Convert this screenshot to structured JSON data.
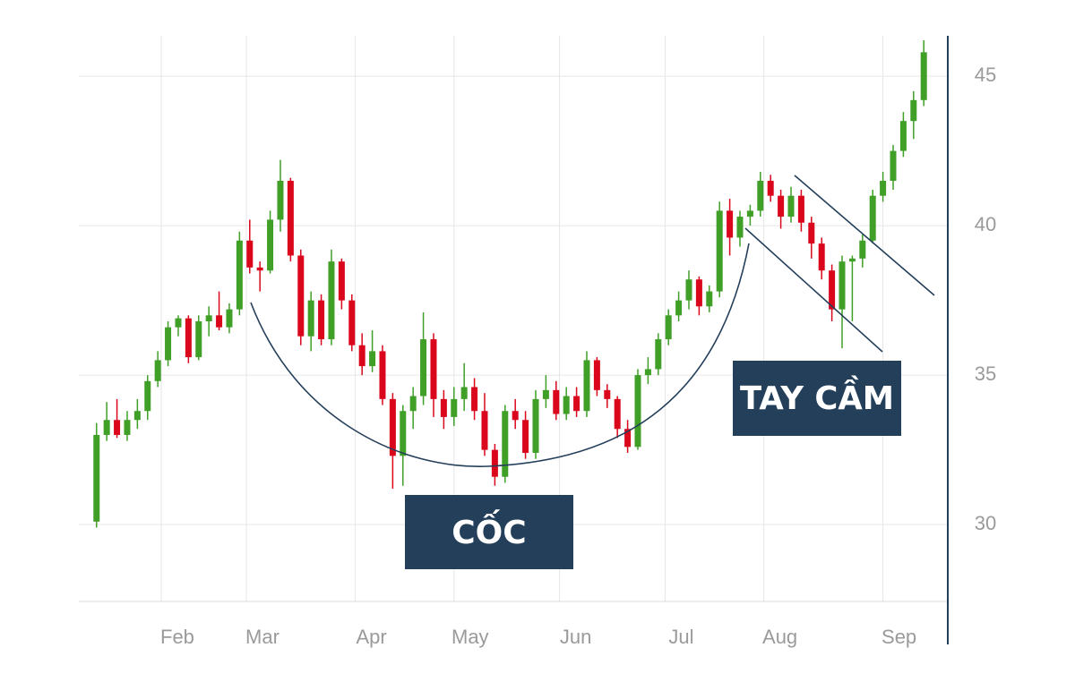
{
  "chart_data": {
    "type": "candlestick",
    "x": [
      12,
      15,
      18,
      21,
      24,
      27,
      30,
      33,
      36,
      39,
      42,
      45,
      48,
      51,
      54,
      57,
      60,
      63,
      66,
      69,
      72,
      75,
      78,
      81,
      84,
      87,
      90,
      93,
      96,
      99,
      102,
      105,
      108,
      111,
      114,
      117,
      120,
      123,
      126,
      129,
      132,
      135,
      138,
      141,
      144,
      147,
      150,
      153,
      156,
      159,
      162,
      165,
      168,
      171,
      174,
      177,
      180,
      183,
      186,
      189,
      192,
      195,
      198,
      201,
      204,
      207,
      210,
      213,
      216,
      219,
      222,
      225,
      228,
      231,
      234,
      237,
      240,
      243,
      246,
      249,
      252,
      255
    ],
    "open": [
      30.1,
      33.0,
      33.5,
      33.0,
      33.5,
      33.8,
      34.8,
      35.5,
      36.6,
      36.9,
      35.6,
      36.8,
      37.0,
      36.6,
      37.2,
      39.5,
      38.6,
      38.5,
      40.2,
      41.5,
      39.0,
      36.3,
      37.5,
      36.2,
      38.8,
      37.5,
      36.0,
      35.3,
      35.8,
      34.2,
      32.3,
      33.8,
      34.3,
      36.2,
      34.2,
      33.6,
      34.2,
      34.6,
      33.8,
      32.5,
      31.6,
      33.8,
      33.5,
      32.4,
      34.2,
      34.5,
      33.7,
      34.3,
      33.8,
      35.5,
      34.5,
      34.2,
      33.2,
      32.6,
      35.0,
      35.2,
      36.2,
      37.0,
      37.5,
      38.2,
      37.3,
      37.8,
      40.5,
      39.6,
      40.3,
      40.5,
      41.5,
      41.0,
      40.3,
      41.0,
      40.1,
      39.4,
      38.5,
      37.2,
      38.8,
      38.9,
      39.5,
      41.0,
      41.5,
      42.5,
      43.5,
      44.2
    ],
    "high": [
      33.4,
      34.1,
      34.2,
      33.8,
      34.2,
      35.0,
      35.8,
      36.8,
      37.0,
      37.0,
      37.0,
      37.3,
      37.8,
      37.4,
      39.8,
      40.2,
      38.8,
      40.5,
      42.2,
      41.6,
      39.2,
      37.8,
      37.7,
      39.2,
      38.9,
      37.7,
      36.4,
      36.5,
      36.0,
      34.4,
      34.0,
      34.6,
      37.1,
      36.4,
      34.5,
      34.6,
      35.4,
      34.9,
      34.4,
      32.7,
      34.0,
      34.2,
      33.8,
      34.5,
      35.0,
      34.8,
      34.6,
      34.6,
      35.8,
      35.6,
      34.7,
      34.3,
      33.5,
      35.2,
      35.6,
      36.4,
      37.2,
      37.8,
      38.5,
      38.3,
      38.0,
      40.8,
      40.9,
      40.5,
      40.7,
      41.8,
      41.7,
      41.2,
      41.3,
      41.2,
      40.3,
      39.6,
      38.7,
      39.0,
      39.0,
      39.7,
      41.2,
      41.8,
      42.7,
      43.8,
      44.5,
      46.2
    ],
    "low": [
      29.9,
      32.8,
      32.9,
      32.8,
      33.2,
      33.5,
      34.6,
      35.3,
      36.3,
      35.4,
      35.5,
      36.3,
      36.5,
      36.4,
      37.0,
      38.4,
      37.8,
      38.4,
      39.8,
      38.8,
      36.0,
      35.8,
      36.0,
      36.0,
      37.2,
      35.8,
      35.0,
      35.1,
      34.0,
      31.2,
      31.3,
      33.2,
      34.0,
      33.6,
      33.2,
      33.3,
      33.8,
      33.5,
      32.3,
      31.3,
      31.4,
      33.2,
      32.2,
      32.2,
      33.9,
      33.5,
      33.5,
      33.6,
      33.6,
      34.3,
      33.9,
      32.9,
      32.4,
      32.5,
      34.7,
      35.0,
      36.0,
      36.8,
      37.2,
      37.0,
      37.1,
      37.6,
      39.0,
      39.3,
      40.0,
      40.3,
      40.8,
      39.9,
      40.1,
      39.8,
      38.9,
      38.2,
      36.8,
      35.9,
      36.8,
      38.6,
      39.4,
      40.8,
      41.2,
      42.3,
      42.9,
      44.0
    ],
    "close": [
      33.0,
      33.5,
      33.0,
      33.5,
      33.8,
      34.8,
      35.5,
      36.6,
      36.9,
      35.6,
      36.8,
      37.0,
      36.6,
      37.2,
      39.5,
      38.6,
      38.5,
      40.2,
      41.5,
      39.0,
      36.3,
      37.5,
      36.2,
      38.8,
      37.5,
      36.0,
      35.3,
      35.8,
      34.2,
      32.3,
      33.8,
      34.3,
      36.2,
      34.2,
      33.6,
      34.2,
      34.6,
      33.8,
      32.5,
      31.6,
      33.8,
      33.5,
      32.4,
      34.2,
      34.5,
      33.7,
      34.3,
      33.8,
      35.5,
      34.5,
      34.2,
      33.2,
      32.6,
      35.0,
      35.2,
      36.2,
      37.0,
      37.5,
      38.2,
      37.3,
      37.8,
      40.5,
      39.6,
      40.3,
      40.5,
      41.5,
      41.0,
      40.3,
      41.0,
      40.1,
      39.4,
      38.5,
      37.2,
      38.8,
      38.9,
      39.5,
      41.0,
      41.5,
      42.5,
      43.5,
      44.2,
      45.8
    ],
    "up_color": "#3f9f27",
    "down_color": "#d9061c",
    "xlim": [
      6.8,
      262.05
    ],
    "xticks": [
      {
        "value": 31,
        "label": "Feb"
      },
      {
        "value": 56,
        "label": "Mar"
      },
      {
        "value": 88,
        "label": "Apr"
      },
      {
        "value": 117,
        "label": "May"
      },
      {
        "value": 148,
        "label": "Jun"
      },
      {
        "value": 179,
        "label": "Jul"
      },
      {
        "value": 208,
        "label": "Aug"
      },
      {
        "value": 243,
        "label": "Sep"
      }
    ],
    "ylim": [
      27.43,
      46.35
    ],
    "yticks": [
      30,
      35,
      40,
      45
    ],
    "grid": true,
    "annotations": [
      {
        "text": "CỐC"
      },
      {
        "text": "TAY CẦM"
      }
    ]
  }
}
